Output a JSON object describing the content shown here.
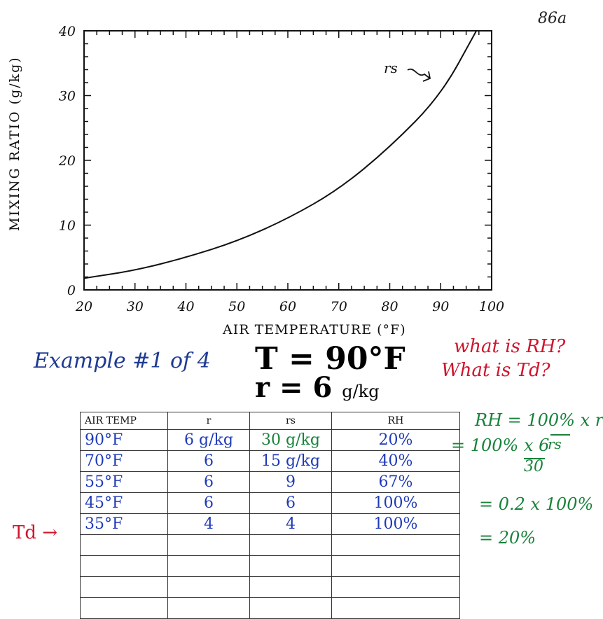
{
  "page_number": "86a",
  "chart_data": {
    "type": "line",
    "xlabel": "AIR TEMPERATURE (°F)",
    "ylabel": "MIXING RATIO (g/kg)",
    "xlim": [
      20,
      100
    ],
    "ylim": [
      0,
      40
    ],
    "x_ticks": [
      "20",
      "30",
      "40",
      "50",
      "60",
      "70",
      "80",
      "90",
      "100"
    ],
    "y_ticks": [
      "0",
      "10",
      "20",
      "30",
      "40"
    ],
    "grid": false,
    "series": [
      {
        "name": "rs",
        "x": [
          20,
          30,
          40,
          50,
          60,
          70,
          80,
          90,
          97
        ],
        "y": [
          1.8,
          3,
          5,
          7.5,
          11,
          15.5,
          22,
          30,
          40
        ]
      }
    ]
  },
  "example": {
    "title": "Example #1 of 4",
    "t_line": "T = 90°F",
    "r_symbol": "r = 6",
    "r_unit": "g/kg",
    "question_rh": "what is RH?",
    "question_td": "What is Td?",
    "td_label": "Td →"
  },
  "table": {
    "headers": [
      "AIR TEMP",
      "r",
      "rs",
      "RH"
    ],
    "rows": [
      [
        "90°F",
        "6 g/kg",
        "30 g/kg",
        "20%"
      ],
      [
        "70°F",
        "6",
        "15 g/kg",
        "40%"
      ],
      [
        "55°F",
        "6",
        "9",
        "67%"
      ],
      [
        "45°F",
        "6",
        "6",
        "100%"
      ],
      [
        "35°F",
        "4",
        "4",
        "100%"
      ],
      [
        "",
        "",
        "",
        ""
      ],
      [
        "",
        "",
        "",
        ""
      ],
      [
        "",
        "",
        "",
        ""
      ],
      [
        "",
        "",
        "",
        ""
      ]
    ]
  },
  "calc": {
    "line1": "RH = 100% x r",
    "line1_denom": "rs",
    "line2": "= 100% x 6",
    "line2_denom": "30",
    "line3": "= 0.2 x 100%",
    "line4": "= 20%"
  },
  "colors": {
    "blue_ink": "#1f3ab8",
    "green_ink": "#17823a",
    "red_ink": "#d0142c"
  }
}
